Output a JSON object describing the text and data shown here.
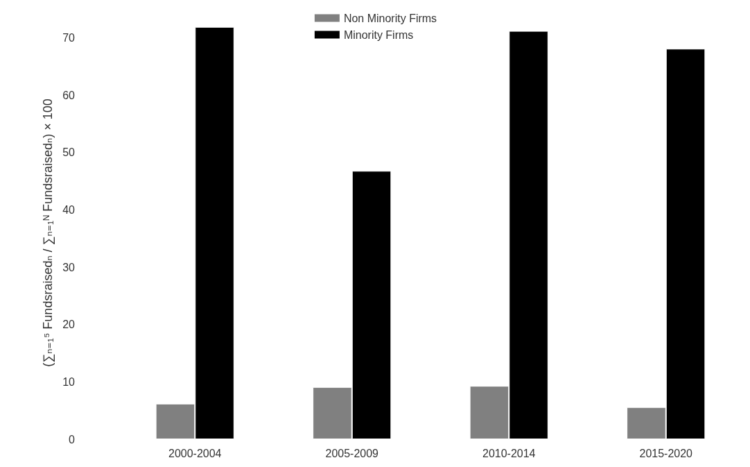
{
  "chart_data": {
    "type": "bar",
    "ylabel": "(∑ₙ₌₁⁵ Fundsraisedₙ / ∑ₙ₌₁ᴺ Fundsraisedₙ) × 100",
    "categories": [
      "2000-2004",
      "2005-2009",
      "2010-2014",
      "2015-2020"
    ],
    "series": [
      {
        "name": "Non Minority Firms",
        "color": "#808080",
        "values": [
          6.2,
          9.1,
          9.3,
          5.6
        ]
      },
      {
        "name": "Minority Firms",
        "color": "#000000",
        "values": [
          71.9,
          46.8,
          71.2,
          68.1
        ]
      }
    ],
    "ylim": [
      0,
      72
    ],
    "yticks": [
      0,
      10,
      20,
      30,
      40,
      50,
      60,
      70
    ],
    "grid": false,
    "legend": "top"
  }
}
